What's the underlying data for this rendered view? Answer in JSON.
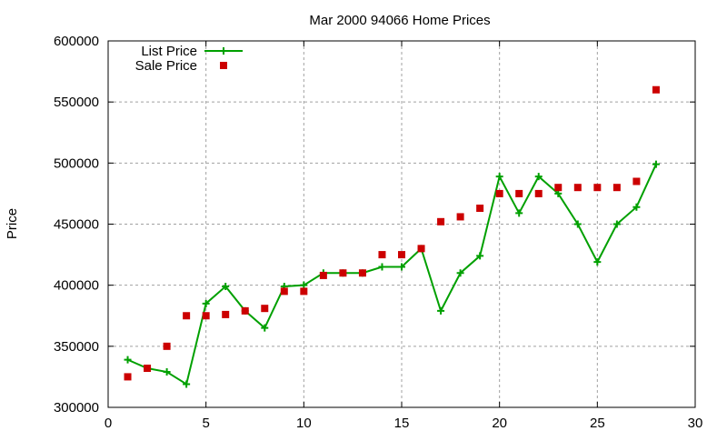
{
  "chart_data": {
    "type": "line",
    "title": "Mar 2000 94066 Home Prices",
    "xlabel": "",
    "ylabel": "Price",
    "xlim": [
      0,
      30
    ],
    "ylim": [
      300000,
      600000
    ],
    "xticks": [
      0,
      5,
      10,
      15,
      20,
      25,
      30
    ],
    "yticks": [
      300000,
      350000,
      400000,
      450000,
      500000,
      550000,
      600000
    ],
    "grid": true,
    "legend_position": "top-left",
    "series": [
      {
        "name": "List Price",
        "style": "linespoints",
        "color": "#00a000",
        "x": [
          1,
          2,
          3,
          4,
          5,
          6,
          7,
          8,
          9,
          10,
          11,
          12,
          13,
          14,
          15,
          16,
          17,
          18,
          19,
          20,
          21,
          22,
          23,
          24,
          25,
          26,
          27,
          28
        ],
        "y": [
          339000,
          332000,
          329000,
          319000,
          385000,
          399000,
          379000,
          365000,
          399000,
          400000,
          410000,
          410000,
          410000,
          415000,
          415000,
          430000,
          379000,
          410000,
          424000,
          489000,
          459000,
          489000,
          475000,
          450000,
          419000,
          450000,
          464000,
          499000
        ]
      },
      {
        "name": "Sale Price",
        "style": "points",
        "color": "#cc0000",
        "x": [
          1,
          2,
          3,
          4,
          5,
          6,
          7,
          8,
          9,
          10,
          11,
          12,
          13,
          14,
          15,
          16,
          17,
          18,
          19,
          20,
          21,
          22,
          23,
          24,
          25,
          26,
          27,
          28
        ],
        "y": [
          325000,
          332000,
          350000,
          375000,
          375000,
          376000,
          379000,
          381000,
          395000,
          395000,
          408000,
          410000,
          410000,
          425000,
          425000,
          430000,
          452000,
          456000,
          463000,
          475000,
          475000,
          475000,
          480000,
          480000,
          480000,
          480000,
          485000,
          560000
        ]
      }
    ]
  }
}
